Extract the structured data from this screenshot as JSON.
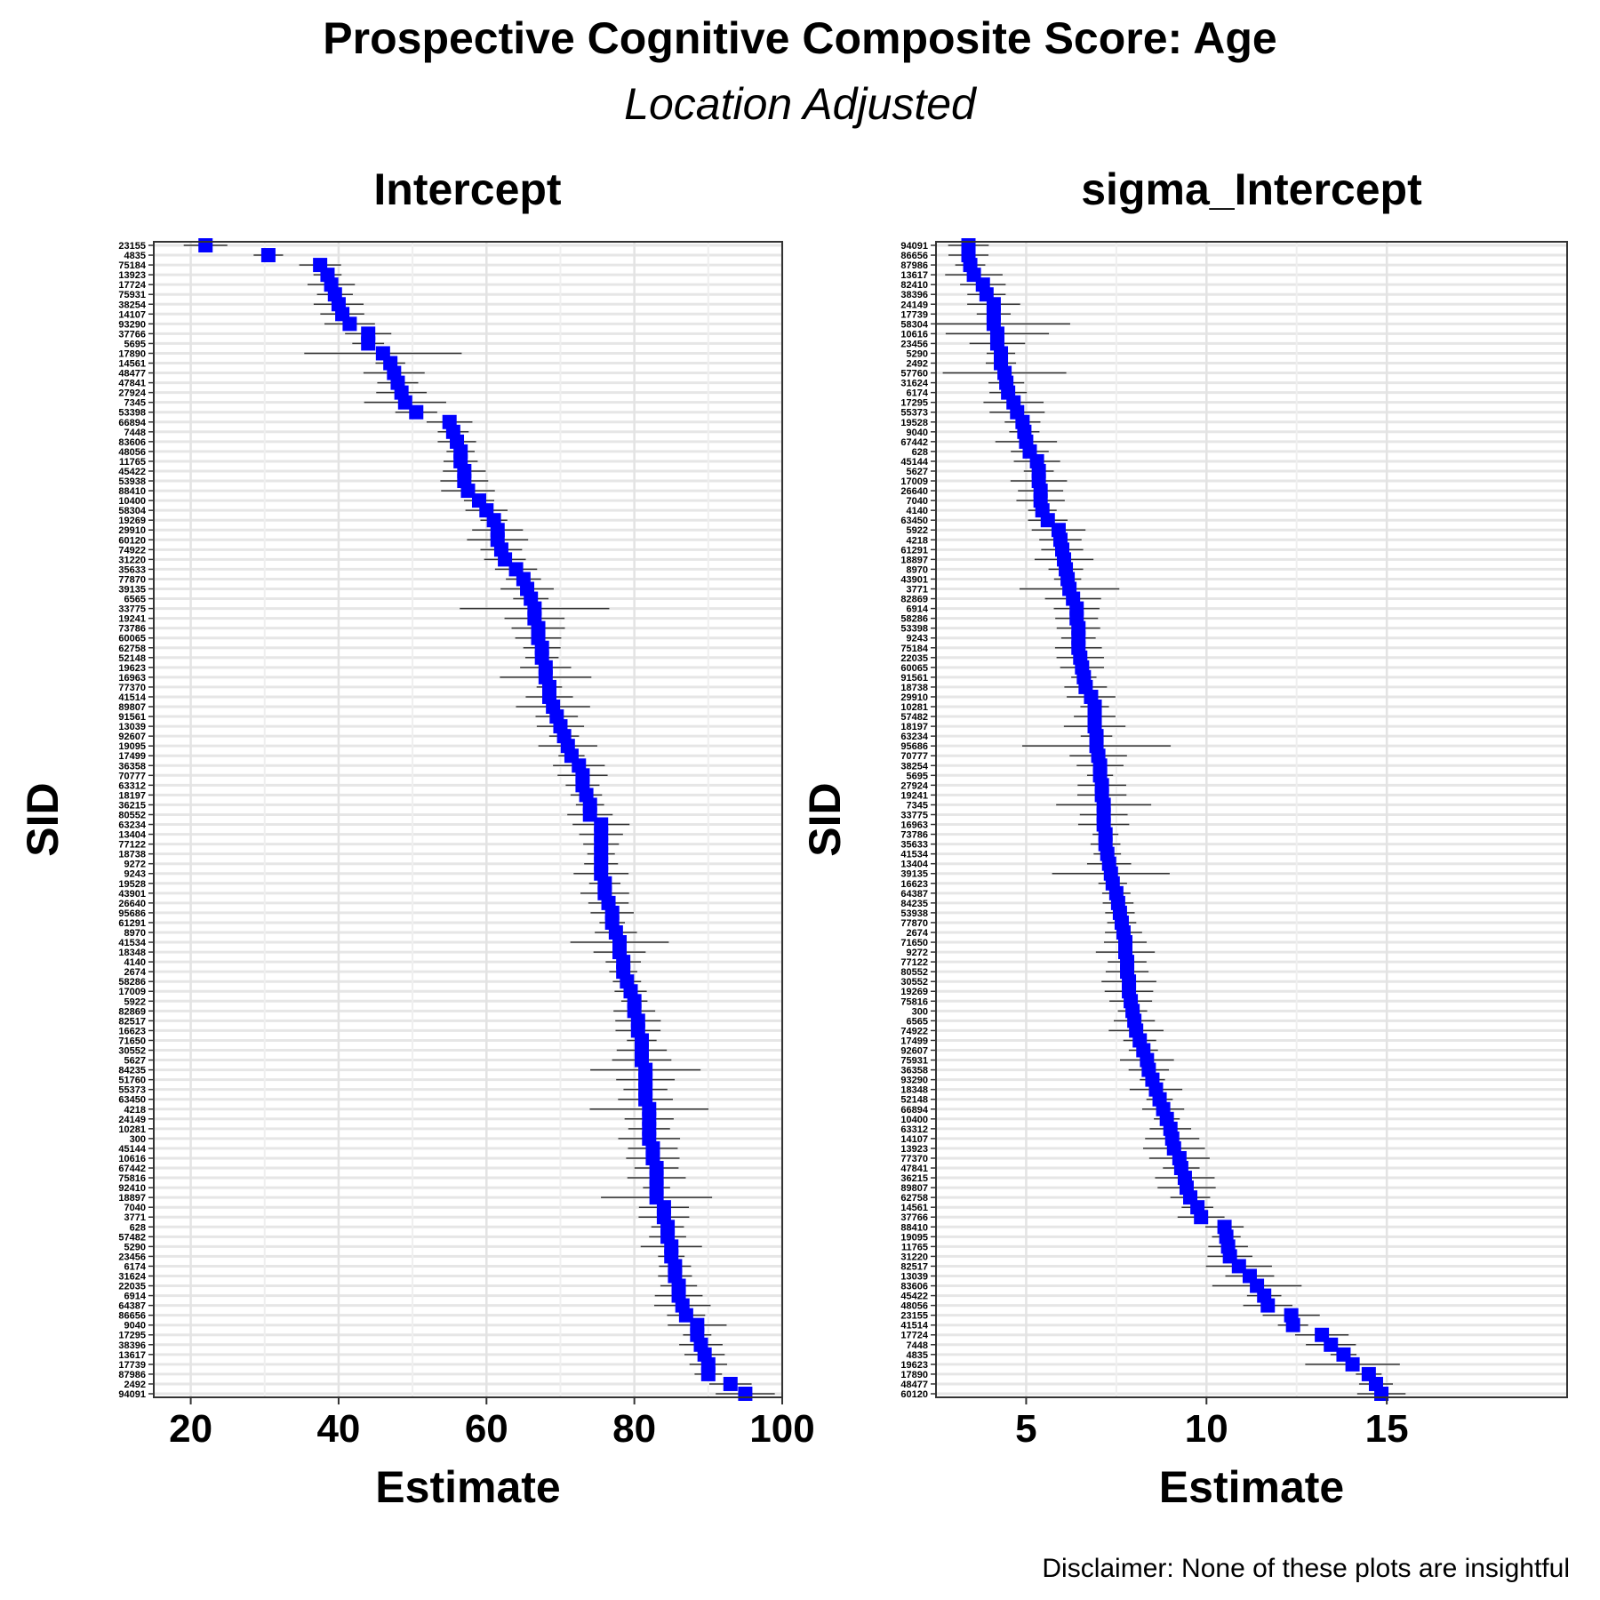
{
  "title": "Prospective Cognitive Composite Score: Age",
  "subtitle": "Location Adjusted",
  "caption": "Disclaimer: None of these plots are insightful",
  "chart_data": [
    {
      "type": "scatter",
      "facet_title": "Intercept",
      "xlabel": "Estimate",
      "ylabel": "SID",
      "xlim": [
        15,
        100
      ],
      "xticks": [
        20,
        40,
        60,
        80,
        100
      ],
      "marker_color": "#0000ff",
      "errorbar_color": "#333333",
      "sids": [
        "23155",
        "4835",
        "75184",
        "13923",
        "17724",
        "75931",
        "38254",
        "14107",
        "93290",
        "37766",
        "5695",
        "17890",
        "14561",
        "48477",
        "47841",
        "27924",
        "7345",
        "53398",
        "66894",
        "7448",
        "83606",
        "48056",
        "11765",
        "45422",
        "53938",
        "88410",
        "10400",
        "58304",
        "19269",
        "29910",
        "60120",
        "74922",
        "31220",
        "35633",
        "77870",
        "39135",
        "6565",
        "33775",
        "19241",
        "73786",
        "60065",
        "62758",
        "52148",
        "19623",
        "16963",
        "77370",
        "41514",
        "89807",
        "91561",
        "13039",
        "92607",
        "19095",
        "17499",
        "36358",
        "70777",
        "63312",
        "18197",
        "36215",
        "80552",
        "63234",
        "13404",
        "77122",
        "18738",
        "9272",
        "9243",
        "19528",
        "43901",
        "26640",
        "95686",
        "61291",
        "8970",
        "41534",
        "18348",
        "4140",
        "2674",
        "58286",
        "17009",
        "5922",
        "82869",
        "82517",
        "16623",
        "71650",
        "30552",
        "5627",
        "84235",
        "51760",
        "55373",
        "63450",
        "4218",
        "24149",
        "10281",
        "300",
        "45144",
        "10616",
        "67442",
        "75816",
        "92410",
        "18897",
        "7040",
        "3771",
        "628",
        "57482",
        "5290",
        "23456",
        "6174",
        "31624",
        "22035",
        "6914",
        "64387",
        "86656",
        "9040",
        "17295",
        "38396",
        "13617",
        "17739",
        "87986",
        "2492",
        "94091"
      ],
      "estimates": [
        22,
        30.5,
        37.5,
        38.5,
        39,
        39.5,
        40,
        40.5,
        41.5,
        44,
        44,
        46,
        47,
        47.5,
        48,
        48.5,
        49,
        50.5,
        55,
        55.5,
        56,
        56.5,
        56.5,
        57,
        57,
        57.5,
        59,
        60,
        61,
        61.5,
        61.5,
        62,
        62.5,
        64,
        65,
        65.5,
        66,
        66.5,
        66.5,
        67,
        67,
        67.5,
        67.5,
        68,
        68,
        68.5,
        68.5,
        69,
        69.5,
        70,
        70.5,
        71,
        71.5,
        72.5,
        73,
        73,
        73.5,
        74,
        74,
        75.5,
        75.5,
        75.5,
        75.5,
        75.5,
        75.5,
        76,
        76,
        76.5,
        77,
        77,
        77.5,
        78,
        78,
        78.5,
        78.5,
        79,
        79.5,
        80,
        80,
        80.5,
        80.5,
        81,
        81,
        81,
        81.5,
        81.5,
        81.5,
        81.5,
        82,
        82,
        82,
        82,
        82.5,
        82.5,
        83,
        83,
        83,
        83,
        84,
        84,
        84.5,
        84.5,
        85,
        85,
        85.5,
        85.5,
        86,
        86,
        86.5,
        87,
        88.5,
        88.5,
        89,
        89.5,
        90,
        90,
        93,
        95
      ]
    },
    {
      "type": "scatter",
      "facet_title": "sigma_Intercept",
      "xlabel": "Estimate",
      "ylabel": "SID",
      "xlim": [
        2.5,
        20
      ],
      "xticks": [
        5,
        10,
        15
      ],
      "marker_color": "#0000ff",
      "errorbar_color": "#333333",
      "sids": [
        "94091",
        "86656",
        "87986",
        "13617",
        "82410",
        "38396",
        "24149",
        "17739",
        "58304",
        "10616",
        "23456",
        "5290",
        "2492",
        "57760",
        "31624",
        "6174",
        "17295",
        "55373",
        "19528",
        "9040",
        "67442",
        "628",
        "45144",
        "5627",
        "17009",
        "26640",
        "7040",
        "4140",
        "63450",
        "5922",
        "4218",
        "61291",
        "18897",
        "8970",
        "43901",
        "3771",
        "82869",
        "6914",
        "58286",
        "53398",
        "9243",
        "75184",
        "22035",
        "60065",
        "91561",
        "18738",
        "29910",
        "10281",
        "57482",
        "18197",
        "63234",
        "95686",
        "70777",
        "38254",
        "5695",
        "27924",
        "19241",
        "7345",
        "33775",
        "16963",
        "73786",
        "35633",
        "41534",
        "13404",
        "39135",
        "16623",
        "64387",
        "84235",
        "53938",
        "77870",
        "2674",
        "71650",
        "9272",
        "77122",
        "80552",
        "30552",
        "19269",
        "75816",
        "300",
        "6565",
        "74922",
        "17499",
        "92607",
        "75931",
        "36358",
        "93290",
        "18348",
        "52148",
        "66894",
        "10400",
        "63312",
        "14107",
        "13923",
        "77370",
        "47841",
        "36215",
        "89807",
        "62758",
        "14561",
        "37766",
        "88410",
        "19095",
        "11765",
        "31220",
        "82517",
        "13039",
        "83606",
        "45422",
        "48056",
        "23155",
        "41514",
        "17724",
        "7448",
        "4835",
        "19623",
        "17890",
        "48477",
        "60120"
      ],
      "estimates": [
        3.4,
        3.4,
        3.45,
        3.55,
        3.8,
        3.9,
        4.1,
        4.1,
        4.1,
        4.2,
        4.2,
        4.3,
        4.3,
        4.4,
        4.45,
        4.5,
        4.65,
        4.75,
        4.9,
        4.95,
        5,
        5.1,
        5.3,
        5.35,
        5.35,
        5.4,
        5.4,
        5.45,
        5.6,
        5.9,
        5.95,
        6,
        6.05,
        6.1,
        6.15,
        6.2,
        6.3,
        6.4,
        6.4,
        6.45,
        6.45,
        6.45,
        6.5,
        6.55,
        6.6,
        6.65,
        6.8,
        6.9,
        6.9,
        6.9,
        6.95,
        6.95,
        7,
        7.05,
        7.05,
        7.1,
        7.1,
        7.15,
        7.15,
        7.15,
        7.2,
        7.2,
        7.25,
        7.3,
        7.35,
        7.4,
        7.5,
        7.55,
        7.6,
        7.65,
        7.7,
        7.75,
        7.75,
        7.8,
        7.8,
        7.85,
        7.85,
        7.9,
        7.95,
        8,
        8.05,
        8.15,
        8.25,
        8.35,
        8.4,
        8.5,
        8.6,
        8.7,
        8.8,
        8.9,
        9,
        9.05,
        9.1,
        9.25,
        9.3,
        9.4,
        9.45,
        9.55,
        9.75,
        9.85,
        10.5,
        10.55,
        10.6,
        10.65,
        10.9,
        11.2,
        11.4,
        11.6,
        11.7,
        12.35,
        12.4,
        13.2,
        13.45,
        13.8,
        14.05,
        14.5,
        14.7,
        14.85
      ]
    }
  ]
}
